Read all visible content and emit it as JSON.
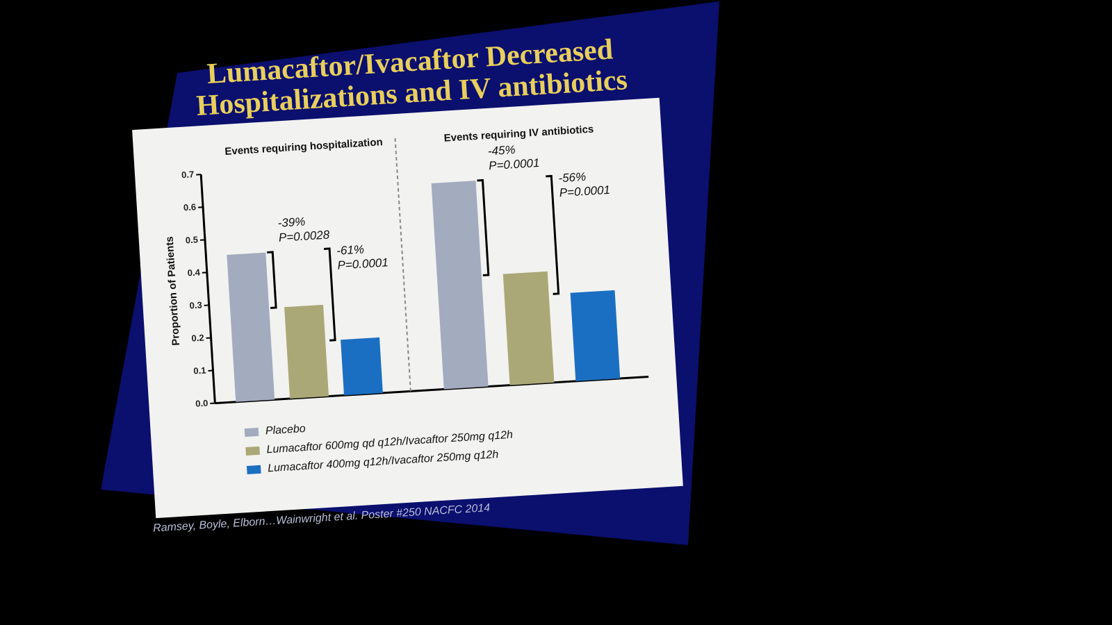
{
  "chart_data": {
    "type": "bar",
    "title": [
      "Lumacaftor/Ivacaftor Decreased",
      "Hospitalizations and IV antibiotics"
    ],
    "y_label": "Proportion of Patients",
    "categories": [
      "Events requiring hospitalization",
      "Events requiring IV antibiotics"
    ],
    "series": [
      {
        "name": "Placebo",
        "color": "#a3abbf",
        "values": [
          0.45,
          0.63
        ]
      },
      {
        "name": "Lumacaftor 600mg qd q12h/Ivacaftor 250mg q12h",
        "color": "#aba877",
        "values": [
          0.28,
          0.34
        ],
        "comparison_labels": [
          {
            "change": "-39%",
            "p": "P=0.0028"
          },
          {
            "change": "-45%",
            "p": "P=0.0001"
          }
        ]
      },
      {
        "name": "Lumacaftor 400mg q12h/Ivacaftor 250mg q12h",
        "color": "#1b6fc2",
        "values": [
          0.17,
          0.27
        ],
        "comparison_labels": [
          {
            "change": "-61%",
            "p": "P=0.0001"
          },
          {
            "change": "-56%",
            "p": "P=0.0001"
          }
        ]
      }
    ],
    "ylim": [
      0,
      0.7
    ],
    "yticks": [
      {
        "value": 0,
        "label": "0.0"
      },
      0.1,
      0.2,
      0.3,
      0.4,
      0.5,
      0.6,
      0.7
    ],
    "source": "Ramsey, Boyle, Elborn…Wainwright et al. Poster #250 NACFC 2014"
  }
}
